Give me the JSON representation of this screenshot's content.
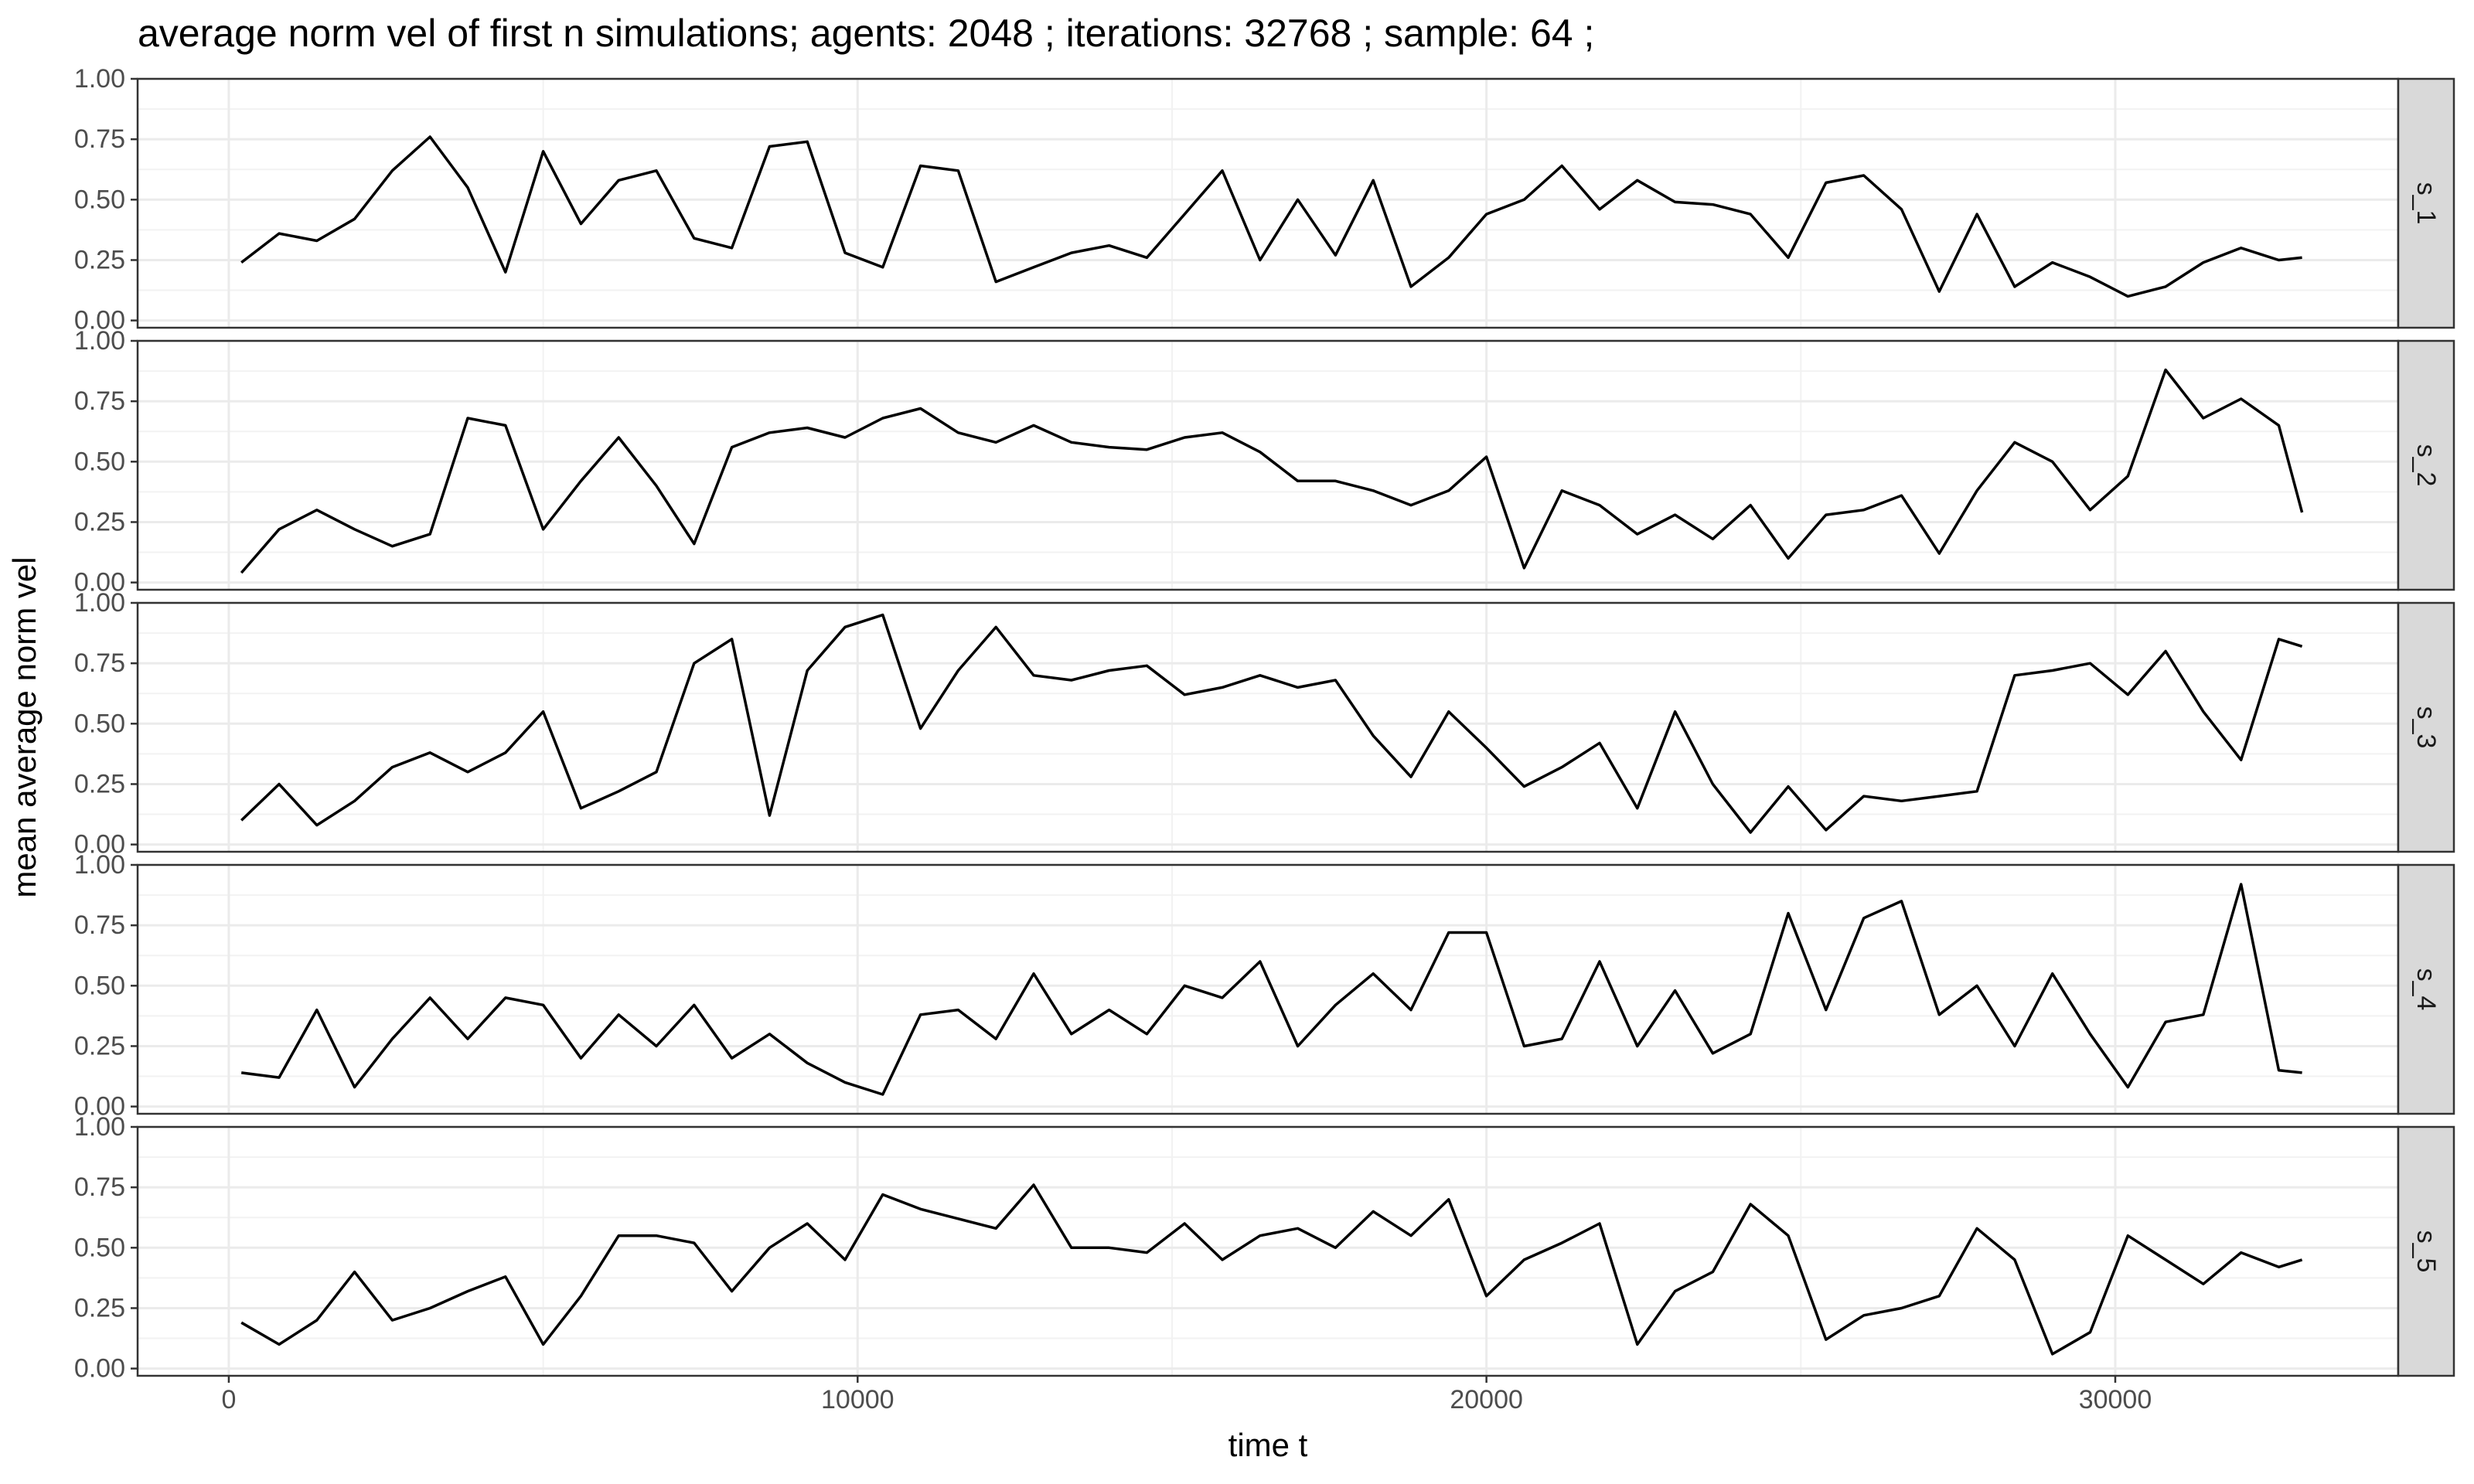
{
  "chart_data": {
    "type": "line",
    "title": "average norm vel of first n simulations; agents: 2048 ; iterations: 32768 ; sample: 64 ;",
    "xlabel": "time t",
    "ylabel": "mean average norm vel",
    "xlim": [
      -1450,
      34500
    ],
    "ylim": [
      -0.03,
      1.0
    ],
    "xticks": [
      0,
      10000,
      20000,
      30000
    ],
    "xtick_labels": [
      "0",
      "10000",
      "20000",
      "30000"
    ],
    "yticks": [
      0,
      0.25,
      0.5,
      0.75,
      1.0
    ],
    "ytick_labels": [
      "0.00",
      "0.25",
      "0.50",
      "0.75",
      "1.00"
    ],
    "grid": true,
    "facet_strip": "right",
    "line_color": "#000000",
    "x": [
      200,
      800,
      1400,
      2000,
      2600,
      3200,
      3800,
      4400,
      5000,
      5600,
      6200,
      6800,
      7400,
      8000,
      8600,
      9200,
      9800,
      10400,
      11000,
      11600,
      12200,
      12800,
      13400,
      14000,
      14600,
      15200,
      15800,
      16400,
      17000,
      17600,
      18200,
      18800,
      19400,
      20000,
      20600,
      21200,
      21800,
      22400,
      23000,
      23600,
      24200,
      24800,
      25400,
      26000,
      26600,
      27200,
      27800,
      28400,
      29000,
      29600,
      30200,
      30800,
      31400,
      32000,
      32600,
      32970
    ],
    "series": [
      {
        "name": "s_1",
        "values": [
          0.24,
          0.36,
          0.33,
          0.42,
          0.62,
          0.76,
          0.55,
          0.2,
          0.7,
          0.4,
          0.58,
          0.62,
          0.34,
          0.3,
          0.72,
          0.74,
          0.28,
          0.22,
          0.64,
          0.62,
          0.16,
          0.22,
          0.28,
          0.31,
          0.26,
          0.44,
          0.62,
          0.25,
          0.5,
          0.27,
          0.58,
          0.14,
          0.26,
          0.44,
          0.5,
          0.64,
          0.46,
          0.58,
          0.49,
          0.48,
          0.44,
          0.26,
          0.57,
          0.6,
          0.46,
          0.12,
          0.44,
          0.14,
          0.24,
          0.18,
          0.1,
          0.14,
          0.24,
          0.3,
          0.25,
          0.26
        ]
      },
      {
        "name": "s_2",
        "values": [
          0.04,
          0.22,
          0.3,
          0.22,
          0.15,
          0.2,
          0.68,
          0.65,
          0.22,
          0.42,
          0.6,
          0.4,
          0.16,
          0.56,
          0.62,
          0.64,
          0.6,
          0.68,
          0.72,
          0.62,
          0.58,
          0.65,
          0.58,
          0.56,
          0.55,
          0.6,
          0.62,
          0.54,
          0.42,
          0.42,
          0.38,
          0.32,
          0.38,
          0.52,
          0.06,
          0.38,
          0.32,
          0.2,
          0.28,
          0.18,
          0.32,
          0.1,
          0.28,
          0.3,
          0.36,
          0.12,
          0.38,
          0.58,
          0.5,
          0.3,
          0.44,
          0.88,
          0.68,
          0.76,
          0.65,
          0.29
        ]
      },
      {
        "name": "s_3",
        "values": [
          0.1,
          0.25,
          0.08,
          0.18,
          0.32,
          0.38,
          0.3,
          0.38,
          0.55,
          0.15,
          0.22,
          0.3,
          0.75,
          0.85,
          0.12,
          0.72,
          0.9,
          0.95,
          0.48,
          0.72,
          0.9,
          0.7,
          0.68,
          0.72,
          0.74,
          0.62,
          0.65,
          0.7,
          0.65,
          0.68,
          0.45,
          0.28,
          0.55,
          0.4,
          0.24,
          0.32,
          0.42,
          0.15,
          0.55,
          0.25,
          0.05,
          0.24,
          0.06,
          0.2,
          0.18,
          0.2,
          0.22,
          0.7,
          0.72,
          0.75,
          0.62,
          0.8,
          0.55,
          0.35,
          0.85,
          0.82
        ]
      },
      {
        "name": "s_4",
        "values": [
          0.14,
          0.12,
          0.4,
          0.08,
          0.28,
          0.45,
          0.28,
          0.45,
          0.42,
          0.2,
          0.38,
          0.25,
          0.42,
          0.2,
          0.3,
          0.18,
          0.1,
          0.05,
          0.38,
          0.4,
          0.28,
          0.55,
          0.3,
          0.4,
          0.3,
          0.5,
          0.45,
          0.6,
          0.25,
          0.42,
          0.55,
          0.4,
          0.72,
          0.72,
          0.25,
          0.28,
          0.6,
          0.25,
          0.48,
          0.22,
          0.3,
          0.8,
          0.4,
          0.78,
          0.85,
          0.38,
          0.5,
          0.25,
          0.55,
          0.3,
          0.08,
          0.35,
          0.38,
          0.92,
          0.15,
          0.14
        ]
      },
      {
        "name": "s_5",
        "values": [
          0.19,
          0.1,
          0.2,
          0.4,
          0.2,
          0.25,
          0.32,
          0.38,
          0.1,
          0.3,
          0.55,
          0.55,
          0.52,
          0.32,
          0.5,
          0.6,
          0.45,
          0.72,
          0.66,
          0.62,
          0.58,
          0.76,
          0.5,
          0.5,
          0.48,
          0.6,
          0.45,
          0.55,
          0.58,
          0.5,
          0.65,
          0.55,
          0.7,
          0.3,
          0.45,
          0.52,
          0.6,
          0.1,
          0.32,
          0.4,
          0.68,
          0.55,
          0.12,
          0.22,
          0.25,
          0.3,
          0.58,
          0.45,
          0.06,
          0.15,
          0.55,
          0.45,
          0.35,
          0.48,
          0.42,
          0.45
        ]
      }
    ]
  }
}
